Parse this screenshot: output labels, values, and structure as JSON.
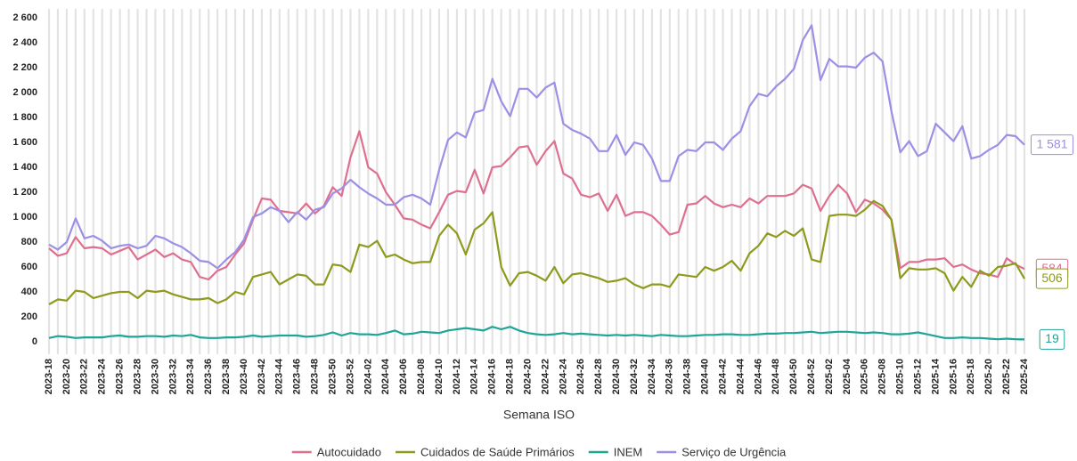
{
  "chart_data": {
    "type": "line",
    "x_label": "Semana ISO",
    "categories": [
      "2023-18",
      null,
      "2023-20",
      null,
      "2023-22",
      null,
      "2023-24",
      null,
      "2023-26",
      null,
      "2023-28",
      null,
      "2023-30",
      null,
      "2023-32",
      null,
      "2023-34",
      null,
      "2023-36",
      null,
      "2023-38",
      null,
      "2023-40",
      null,
      "2023-42",
      null,
      "2023-44",
      null,
      "2023-46",
      null,
      "2023-48",
      null,
      "2023-50",
      null,
      "2023-52",
      null,
      "2024-02",
      null,
      "2024-04",
      null,
      "2024-06",
      null,
      "2024-08",
      null,
      "2024-10",
      null,
      "2024-12",
      null,
      "2024-14",
      null,
      "2024-16",
      null,
      "2024-18",
      null,
      "2024-20",
      null,
      "2024-22",
      null,
      "2024-24",
      null,
      "2024-26",
      null,
      "2024-28",
      null,
      "2024-30",
      null,
      "2024-32",
      null,
      "2024-34",
      null,
      "2024-36",
      null,
      "2024-38",
      null,
      "2024-40",
      null,
      "2024-42",
      null,
      "2024-44",
      null,
      "2024-46",
      null,
      "2024-48",
      null,
      "2024-50",
      null,
      "2024-52",
      null,
      "2025-02",
      null,
      "2025-04",
      null,
      "2025-06",
      null,
      "2025-08",
      null,
      "2025-10",
      null,
      "2025-12",
      null,
      "2025-14",
      null,
      "2025-16",
      null,
      "2025-18",
      null,
      "2025-20",
      null,
      "2025-22",
      null,
      "2025-24"
    ],
    "ylim": [
      -100,
      2650
    ],
    "yticks": [
      0,
      200,
      400,
      600,
      800,
      {
        "value": 1000,
        "label": "1 000"
      },
      {
        "value": 1200,
        "label": "1 200"
      },
      {
        "value": 1400,
        "label": "1 400"
      },
      {
        "value": 1600,
        "label": "1 600"
      },
      {
        "value": 1800,
        "label": "1 800"
      },
      {
        "value": 2000,
        "label": "2 000"
      },
      {
        "value": 2200,
        "label": "2 200"
      },
      {
        "value": 2400,
        "label": "2 400"
      },
      {
        "value": 2600,
        "label": "2 600"
      }
    ],
    "grid": "x",
    "legend": "bottom",
    "series": [
      {
        "name": "Autocuidado",
        "color": "#de6f8e",
        "values": [
          750,
          690,
          710,
          840,
          750,
          760,
          750,
          700,
          730,
          760,
          660,
          700,
          740,
          680,
          710,
          660,
          640,
          520,
          500,
          570,
          600,
          700,
          790,
          980,
          1150,
          1140,
          1050,
          1040,
          1030,
          1110,
          1030,
          1090,
          1240,
          1170,
          1480,
          1690,
          1400,
          1350,
          1200,
          1100,
          990,
          980,
          940,
          910,
          1040,
          1180,
          1210,
          1200,
          1380,
          1190,
          1400,
          1410,
          1480,
          1560,
          1570,
          1420,
          1530,
          1610,
          1350,
          1310,
          1180,
          1160,
          1190,
          1050,
          1180,
          1010,
          1040,
          1040,
          1010,
          940,
          860,
          880,
          1100,
          1110,
          1170,
          1110,
          1080,
          1100,
          1080,
          1150,
          1110,
          1170,
          1170,
          1170,
          1190,
          1260,
          1230,
          1050,
          1170,
          1260,
          1190,
          1040,
          1140,
          1110,
          1060,
          980,
          590,
          640,
          640,
          660,
          660,
          670,
          600,
          620,
          580,
          550,
          540,
          520,
          670,
          620,
          584
        ],
        "value_labels": [
          null,
          null,
          null,
          null,
          null,
          null,
          null,
          null,
          null,
          null,
          null,
          null,
          null,
          null,
          null,
          null,
          null,
          null,
          null,
          null,
          null,
          null,
          null,
          null,
          null,
          null,
          null,
          null,
          null,
          null,
          null,
          null,
          null,
          null,
          null,
          null,
          null,
          null,
          null,
          null,
          null,
          null,
          null,
          null,
          null,
          null,
          null,
          null,
          null,
          null,
          null,
          null,
          null,
          null,
          null,
          null,
          null,
          null,
          null,
          null,
          null,
          null,
          null,
          null,
          null,
          null,
          null,
          null,
          null,
          null,
          null,
          null,
          null,
          null,
          null,
          null,
          null,
          null,
          null,
          null,
          null,
          null,
          null,
          null,
          null,
          null,
          null,
          null,
          null,
          null,
          null,
          null,
          null,
          null,
          null,
          null,
          null,
          null,
          null,
          null,
          null,
          null,
          null,
          null,
          null,
          null,
          null,
          null,
          null,
          null,
          "584"
        ]
      },
      {
        "name": "Cuidados de Saúde Primários",
        "color": "#8e9a1c",
        "values": [
          300,
          340,
          330,
          410,
          400,
          350,
          370,
          390,
          400,
          400,
          350,
          410,
          400,
          410,
          380,
          360,
          340,
          340,
          350,
          310,
          340,
          400,
          380,
          520,
          540,
          560,
          460,
          500,
          540,
          530,
          460,
          460,
          620,
          610,
          560,
          780,
          760,
          810,
          680,
          700,
          660,
          630,
          640,
          640,
          850,
          940,
          870,
          700,
          900,
          950,
          1040,
          600,
          450,
          550,
          560,
          530,
          490,
          600,
          470,
          540,
          550,
          530,
          510,
          480,
          490,
          510,
          460,
          430,
          460,
          460,
          440,
          540,
          530,
          520,
          600,
          570,
          600,
          650,
          570,
          710,
          770,
          870,
          840,
          890,
          850,
          910,
          660,
          640,
          1010,
          1020,
          1020,
          1010,
          1060,
          1130,
          1090,
          980,
          510,
          590,
          580,
          580,
          590,
          550,
          410,
          520,
          440,
          570,
          530,
          600,
          610,
          630,
          506
        ],
        "value_labels": [
          null,
          null,
          null,
          null,
          null,
          null,
          null,
          null,
          null,
          null,
          null,
          null,
          null,
          null,
          null,
          null,
          null,
          null,
          null,
          null,
          null,
          null,
          null,
          null,
          null,
          null,
          null,
          null,
          null,
          null,
          null,
          null,
          null,
          null,
          null,
          null,
          null,
          null,
          null,
          null,
          null,
          null,
          null,
          null,
          null,
          null,
          null,
          null,
          null,
          null,
          null,
          null,
          null,
          null,
          null,
          null,
          null,
          null,
          null,
          null,
          null,
          null,
          null,
          null,
          null,
          null,
          null,
          null,
          null,
          null,
          null,
          null,
          null,
          null,
          null,
          null,
          null,
          null,
          null,
          null,
          null,
          null,
          null,
          null,
          null,
          null,
          null,
          null,
          null,
          null,
          null,
          null,
          null,
          null,
          null,
          null,
          null,
          null,
          null,
          null,
          null,
          null,
          null,
          null,
          null,
          null,
          null,
          null,
          null,
          null,
          "506"
        ]
      },
      {
        "name": "INEM",
        "color": "#1fa597",
        "values": [
          30,
          45,
          40,
          30,
          35,
          35,
          35,
          45,
          50,
          40,
          40,
          45,
          45,
          40,
          50,
          45,
          55,
          35,
          30,
          30,
          35,
          35,
          40,
          50,
          40,
          45,
          50,
          50,
          50,
          40,
          45,
          55,
          75,
          50,
          70,
          60,
          60,
          55,
          70,
          90,
          60,
          65,
          80,
          75,
          70,
          90,
          100,
          110,
          100,
          90,
          120,
          100,
          120,
          90,
          70,
          60,
          55,
          60,
          70,
          60,
          65,
          60,
          55,
          50,
          55,
          50,
          55,
          50,
          45,
          55,
          50,
          45,
          45,
          50,
          55,
          55,
          60,
          60,
          55,
          55,
          60,
          65,
          65,
          70,
          70,
          75,
          80,
          70,
          75,
          80,
          80,
          75,
          70,
          75,
          70,
          60,
          60,
          65,
          75,
          60,
          45,
          30,
          30,
          35,
          30,
          30,
          25,
          20,
          25,
          20,
          19
        ],
        "value_labels": [
          null,
          null,
          null,
          null,
          null,
          null,
          null,
          null,
          null,
          null,
          null,
          null,
          null,
          null,
          null,
          null,
          null,
          null,
          null,
          null,
          null,
          null,
          null,
          null,
          null,
          null,
          null,
          null,
          null,
          null,
          null,
          null,
          null,
          null,
          null,
          null,
          null,
          null,
          null,
          null,
          null,
          null,
          null,
          null,
          null,
          null,
          null,
          null,
          null,
          null,
          null,
          null,
          null,
          null,
          null,
          null,
          null,
          null,
          null,
          null,
          null,
          null,
          null,
          null,
          null,
          null,
          null,
          null,
          null,
          null,
          null,
          null,
          null,
          null,
          null,
          null,
          null,
          null,
          null,
          null,
          null,
          null,
          null,
          null,
          null,
          null,
          null,
          null,
          null,
          null,
          null,
          null,
          null,
          null,
          null,
          null,
          null,
          null,
          null,
          null,
          null,
          null,
          null,
          null,
          null,
          null,
          null,
          null,
          null,
          null,
          "19"
        ]
      },
      {
        "name": "Serviço de Urgência",
        "color": "#9b8fe6",
        "values": [
          780,
          740,
          800,
          990,
          830,
          850,
          810,
          750,
          770,
          780,
          750,
          770,
          850,
          830,
          790,
          760,
          710,
          650,
          640,
          590,
          660,
          720,
          820,
          1000,
          1030,
          1080,
          1050,
          960,
          1040,
          980,
          1060,
          1080,
          1190,
          1230,
          1300,
          1240,
          1190,
          1150,
          1100,
          1100,
          1160,
          1180,
          1150,
          1100,
          1380,
          1620,
          1680,
          1640,
          1840,
          1860,
          2110,
          1930,
          1810,
          2030,
          2030,
          1960,
          2040,
          2080,
          1750,
          1700,
          1670,
          1630,
          1530,
          1530,
          1660,
          1500,
          1600,
          1580,
          1470,
          1290,
          1290,
          1490,
          1540,
          1530,
          1600,
          1600,
          1540,
          1630,
          1690,
          1890,
          1990,
          1970,
          2050,
          2110,
          2190,
          2420,
          2540,
          2100,
          2270,
          2210,
          2210,
          2200,
          2280,
          2320,
          2250,
          1850,
          1520,
          1610,
          1490,
          1530,
          1750,
          1680,
          1610,
          1730,
          1470,
          1490,
          1540,
          1580,
          1660,
          1650,
          1581
        ],
        "value_labels": [
          null,
          null,
          null,
          null,
          null,
          null,
          null,
          null,
          null,
          null,
          null,
          null,
          null,
          null,
          null,
          null,
          null,
          null,
          null,
          null,
          null,
          null,
          null,
          null,
          null,
          null,
          null,
          null,
          null,
          null,
          null,
          null,
          null,
          null,
          null,
          null,
          null,
          null,
          null,
          null,
          null,
          null,
          null,
          null,
          null,
          null,
          null,
          null,
          null,
          null,
          null,
          null,
          null,
          null,
          null,
          null,
          null,
          null,
          null,
          null,
          null,
          null,
          null,
          null,
          null,
          null,
          null,
          null,
          null,
          null,
          null,
          null,
          null,
          null,
          null,
          null,
          null,
          null,
          null,
          null,
          null,
          null,
          null,
          null,
          null,
          null,
          null,
          null,
          null,
          null,
          null,
          null,
          null,
          null,
          null,
          null,
          null,
          null,
          null,
          null,
          null,
          null,
          null,
          null,
          null,
          null,
          null,
          null,
          null,
          null,
          "1 581"
        ]
      }
    ]
  }
}
